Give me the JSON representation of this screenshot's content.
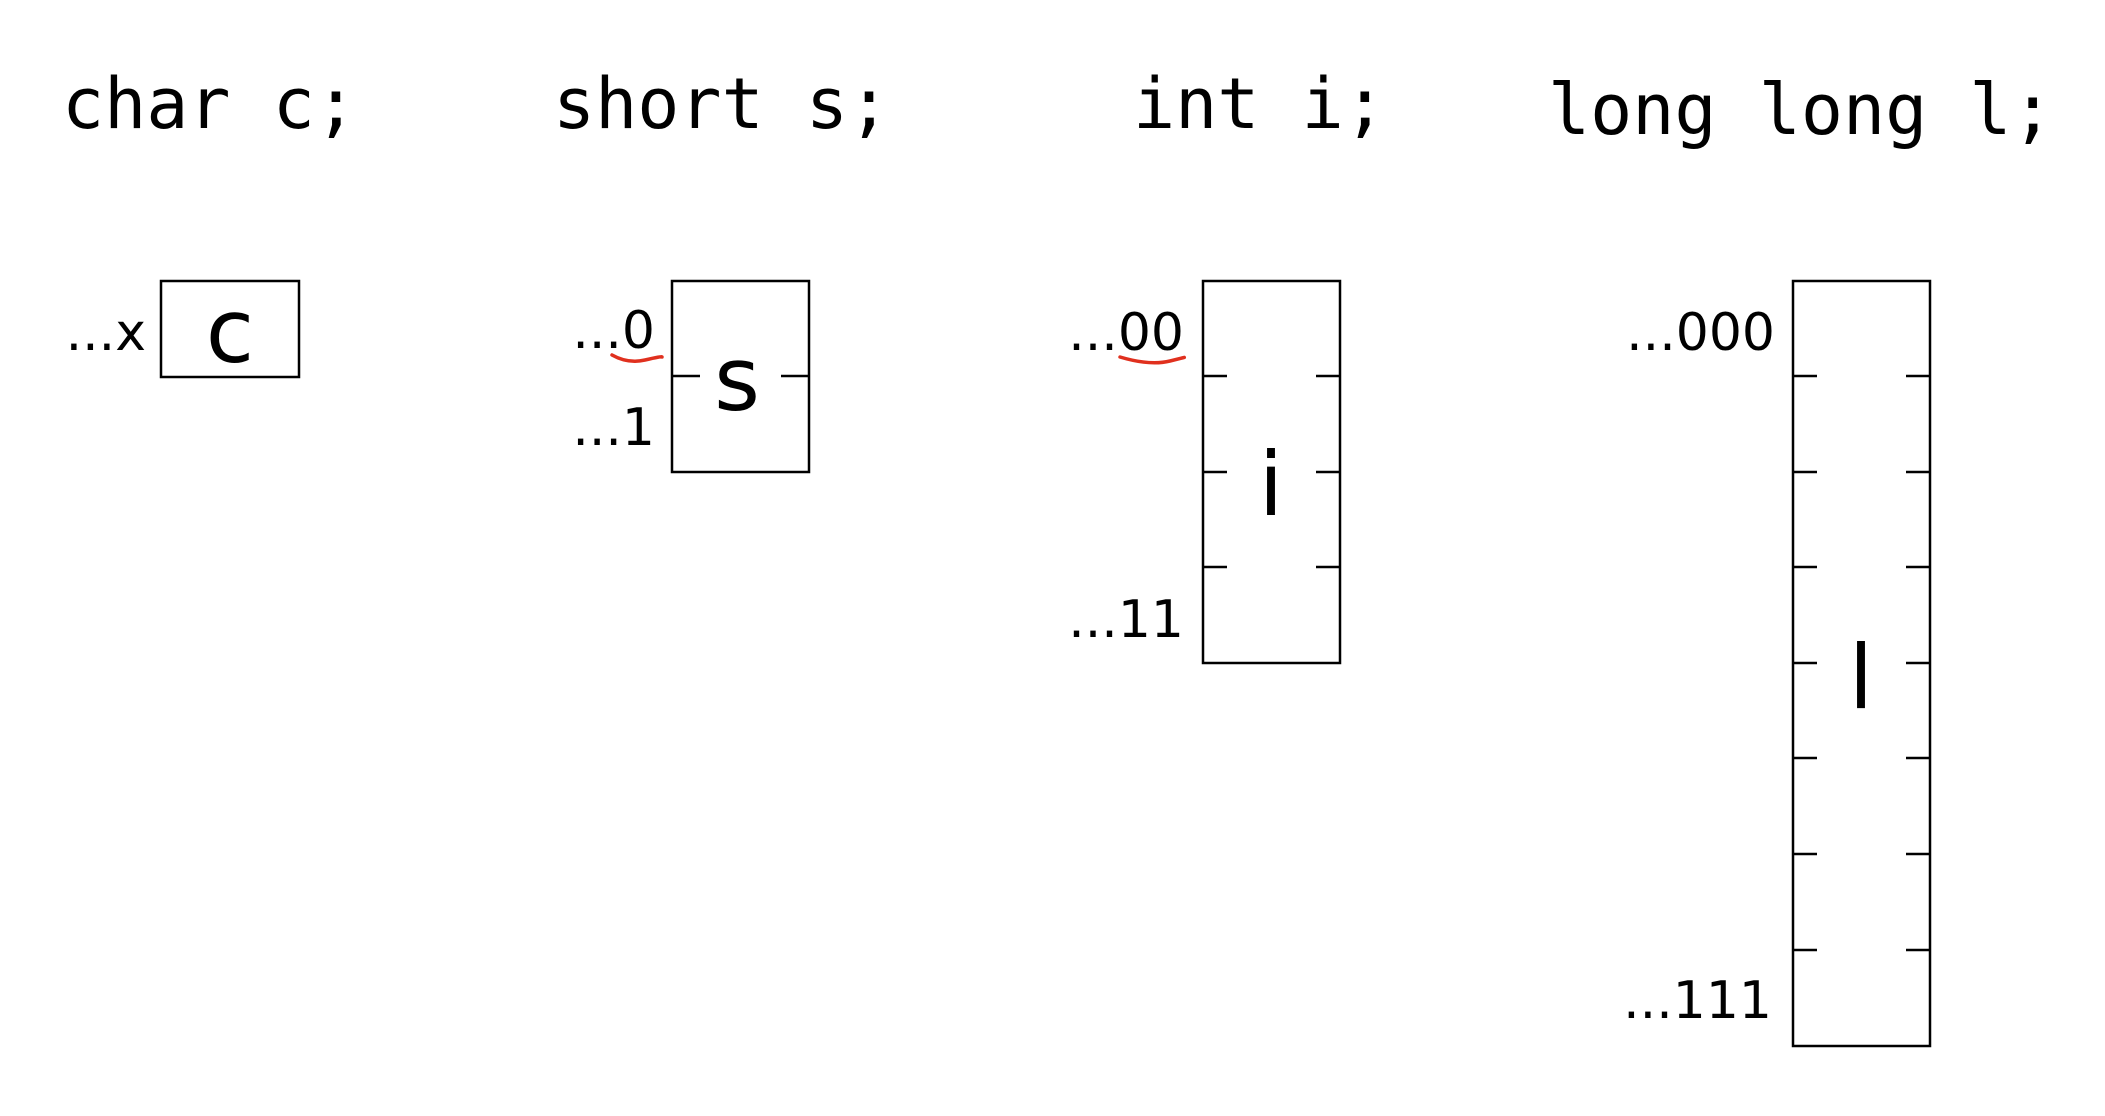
{
  "accent": {
    "annotation": "#e0301e"
  },
  "columns": [
    {
      "declaration": "char c;",
      "variable": "c",
      "bytes": 1,
      "addresses": {
        "first": "...x",
        "last": ""
      },
      "underlined_digits": ""
    },
    {
      "declaration": "short s;",
      "variable": "s",
      "bytes": 2,
      "addresses": {
        "first": "...0",
        "last": "...1"
      },
      "underlined_digits": "0"
    },
    {
      "declaration": "int i;",
      "variable": "i",
      "bytes": 4,
      "addresses": {
        "first": "...00",
        "last": "...11"
      },
      "underlined_digits": "00"
    },
    {
      "declaration": "long long l;",
      "variable": "l",
      "bytes": 8,
      "addresses": {
        "first": "...000",
        "last": "...111"
      },
      "underlined_digits": ""
    }
  ]
}
